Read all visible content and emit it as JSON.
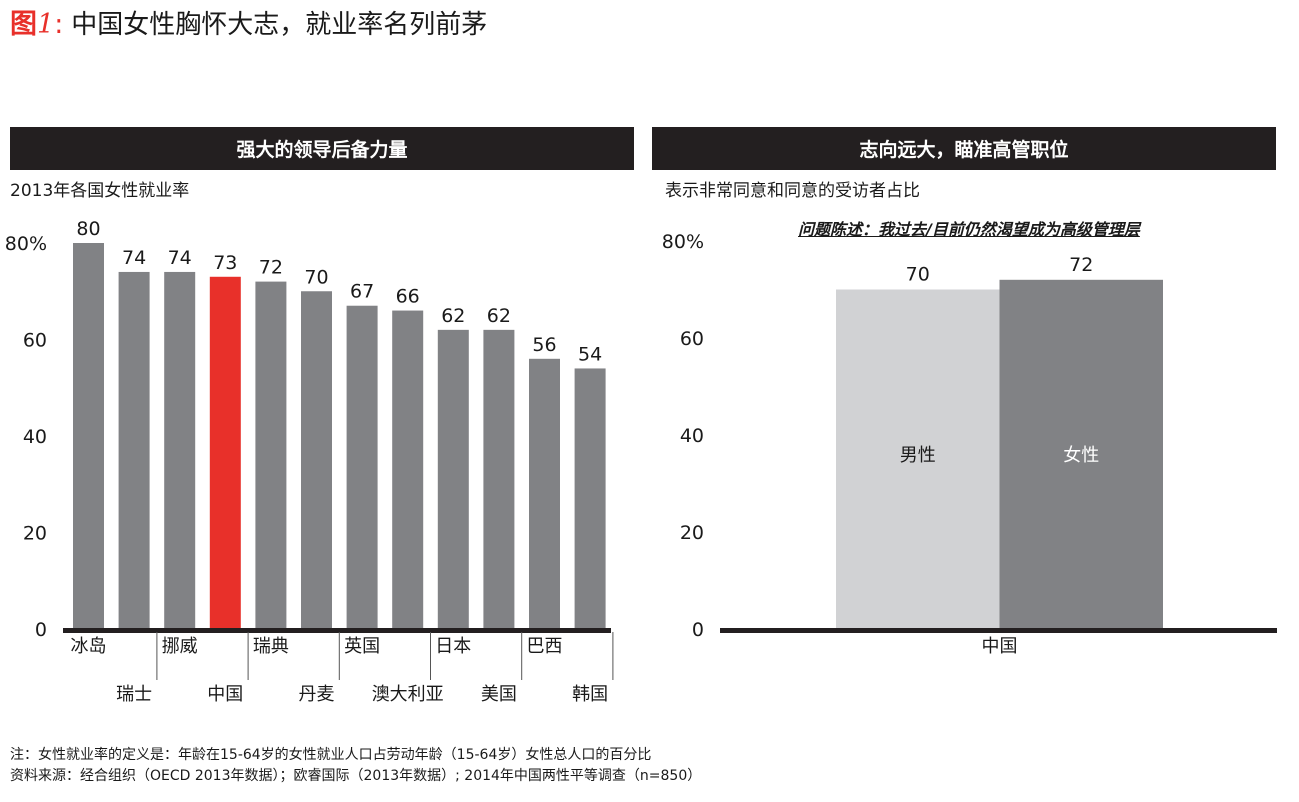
{
  "title": {
    "fig_label": "图",
    "fig_number": "1",
    "fig_colon": ":",
    "text": "中国女性胸怀大志，就业率名列前茅"
  },
  "left_panel": {
    "header": "强大的领导后备力量",
    "subtitle": "2013年各国女性就业率"
  },
  "right_panel": {
    "header": "志向远大，瞄准高管职位",
    "subtitle": "表示非常同意和同意的受访者占比",
    "question": "问题陈述：我过去/目前仍然渴望成为高级管理层"
  },
  "footnotes": {
    "note": "注：女性就业率的定义是：年龄在15-64岁的女性就业人口占劳动年龄（15-64岁）女性总人口的百分比",
    "source": "资料来源：经合组织（OECD 2013年数据）；欧睿国际（2013年数据）; 2014年中国两性平等调查（n=850）"
  },
  "chart_data": [
    {
      "type": "bar",
      "categories": [
        "冰岛",
        "瑞士",
        "挪威",
        "中国",
        "瑞典",
        "丹麦",
        "英国",
        "澳大利亚",
        "日本",
        "美国",
        "巴西",
        "韩国"
      ],
      "values": [
        80,
        74,
        74,
        73,
        72,
        70,
        67,
        66,
        62,
        62,
        56,
        54
      ],
      "data_labels": [
        "80",
        "74",
        "74",
        "73",
        "72",
        "70",
        "67",
        "66",
        "62",
        "62",
        "56",
        "54"
      ],
      "highlight": "中国",
      "ylim": [
        0,
        80
      ],
      "yticks": [
        "0",
        "20",
        "40",
        "60",
        "80%"
      ],
      "colors": {
        "bar": "#818285",
        "highlight": "#e8302a",
        "axis": "#231f20"
      }
    },
    {
      "type": "bar",
      "categories": [
        "中国"
      ],
      "series": [
        {
          "name": "男性",
          "values": [
            70
          ],
          "data_label": "70",
          "color": "#d1d2d4"
        },
        {
          "name": "女性",
          "values": [
            72
          ],
          "data_label": "72",
          "color": "#818285"
        }
      ],
      "ylim": [
        0,
        80
      ],
      "yticks": [
        "0",
        "20",
        "40",
        "60",
        "80%"
      ],
      "colors": {
        "axis": "#231f20"
      }
    }
  ]
}
